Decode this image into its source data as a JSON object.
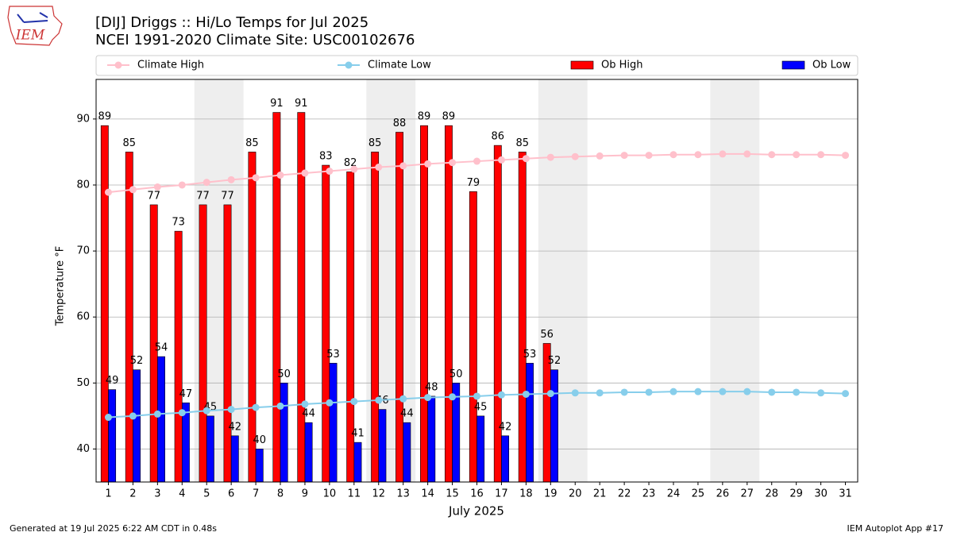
{
  "logo_text": "IEM",
  "footer_left": "Generated at 19 Jul 2025 6:22 AM CDT in 0.48s",
  "footer_right": "IEM Autoplot App #17",
  "chart_data": {
    "type": "bar",
    "title": "[DIJ] Driggs :: Hi/Lo Temps for Jul 2025",
    "subtitle": "NCEI 1991-2020 Climate Site: USC00102676",
    "xlabel": "July 2025",
    "ylabel": "Temperature °F",
    "x": [
      1,
      2,
      3,
      4,
      5,
      6,
      7,
      8,
      9,
      10,
      11,
      12,
      13,
      14,
      15,
      16,
      17,
      18,
      19,
      20,
      21,
      22,
      23,
      24,
      25,
      26,
      27,
      28,
      29,
      30,
      31
    ],
    "xlim": [
      0.5,
      31.5
    ],
    "xticks": [
      1,
      2,
      3,
      4,
      5,
      6,
      7,
      8,
      9,
      10,
      11,
      12,
      13,
      14,
      15,
      16,
      17,
      18,
      19,
      20,
      21,
      22,
      23,
      24,
      25,
      26,
      27,
      28,
      29,
      30,
      31
    ],
    "ylim": [
      35,
      96
    ],
    "yticks": [
      40,
      50,
      60,
      70,
      80,
      90
    ],
    "grid": true,
    "legend": "upper outside",
    "shaded_ranges": [
      [
        4.5,
        6.5
      ],
      [
        11.5,
        13.5
      ],
      [
        18.5,
        20.5
      ],
      [
        25.5,
        27.5
      ]
    ],
    "shade_color": "#eeeeee",
    "series": [
      {
        "name": "Climate High",
        "type": "line",
        "color": "#ffc0cb",
        "values": [
          78.9,
          79.3,
          79.7,
          80.0,
          80.4,
          80.8,
          81.1,
          81.5,
          81.8,
          82.1,
          82.4,
          82.7,
          82.9,
          83.2,
          83.4,
          83.6,
          83.8,
          84.0,
          84.2,
          84.3,
          84.4,
          84.5,
          84.5,
          84.6,
          84.6,
          84.7,
          84.7,
          84.6,
          84.6,
          84.6,
          84.5
        ]
      },
      {
        "name": "Climate Low",
        "type": "line",
        "color": "#87ceeb",
        "values": [
          44.8,
          45.0,
          45.3,
          45.5,
          45.8,
          46.0,
          46.3,
          46.5,
          46.8,
          47.0,
          47.2,
          47.4,
          47.6,
          47.8,
          47.9,
          48.0,
          48.2,
          48.3,
          48.4,
          48.5,
          48.5,
          48.6,
          48.6,
          48.7,
          48.7,
          48.7,
          48.7,
          48.6,
          48.6,
          48.5,
          48.4
        ]
      },
      {
        "name": "Ob High",
        "type": "bar",
        "color": "#ff0000",
        "values": [
          89,
          85,
          77,
          73,
          77,
          77,
          85,
          91,
          91,
          83,
          82,
          85,
          88,
          89,
          89,
          79,
          86,
          85,
          56,
          null,
          null,
          null,
          null,
          null,
          null,
          null,
          null,
          null,
          null,
          null,
          null
        ]
      },
      {
        "name": "Ob Low",
        "type": "bar",
        "color": "#0000ff",
        "values": [
          49,
          52,
          54,
          47,
          45,
          42,
          40,
          50,
          44,
          53,
          41,
          46,
          44,
          48,
          50,
          45,
          42,
          53,
          52,
          null,
          null,
          null,
          null,
          null,
          null,
          null,
          null,
          null,
          null,
          null,
          null
        ]
      }
    ]
  }
}
